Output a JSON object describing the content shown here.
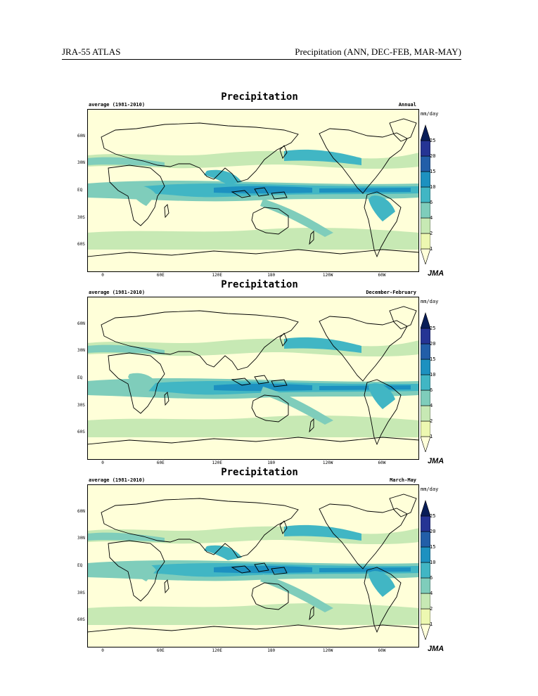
{
  "header": {
    "left": "JRA-55 ATLAS",
    "right": "Precipitation (ANN, DEC-FEB, MAR-MAY)"
  },
  "panels": [
    {
      "title": "Precipitation",
      "subtitle": "average (1981-2010)",
      "season": "Annual"
    },
    {
      "title": "Precipitation",
      "subtitle": "average (1981-2010)",
      "season": "December-February"
    },
    {
      "title": "Precipitation",
      "subtitle": "average (1981-2010)",
      "season": "March-May"
    }
  ],
  "axes": {
    "lat_labels": [
      "60N",
      "30N",
      "EQ",
      "30S",
      "60S"
    ],
    "lon_labels": [
      "0",
      "60E",
      "120E",
      "180",
      "120W",
      "60W"
    ]
  },
  "colorbar": {
    "unit": "mm/day",
    "ticks": [
      "25",
      "20",
      "15",
      "10",
      "6",
      "4",
      "2",
      "1"
    ],
    "colors": [
      "#ffffd9",
      "#edf8b1",
      "#c7e9b4",
      "#7fcdbb",
      "#41b6c4",
      "#1d91c0",
      "#225ea8",
      "#253494",
      "#081d58"
    ]
  },
  "logo": "JMA"
}
